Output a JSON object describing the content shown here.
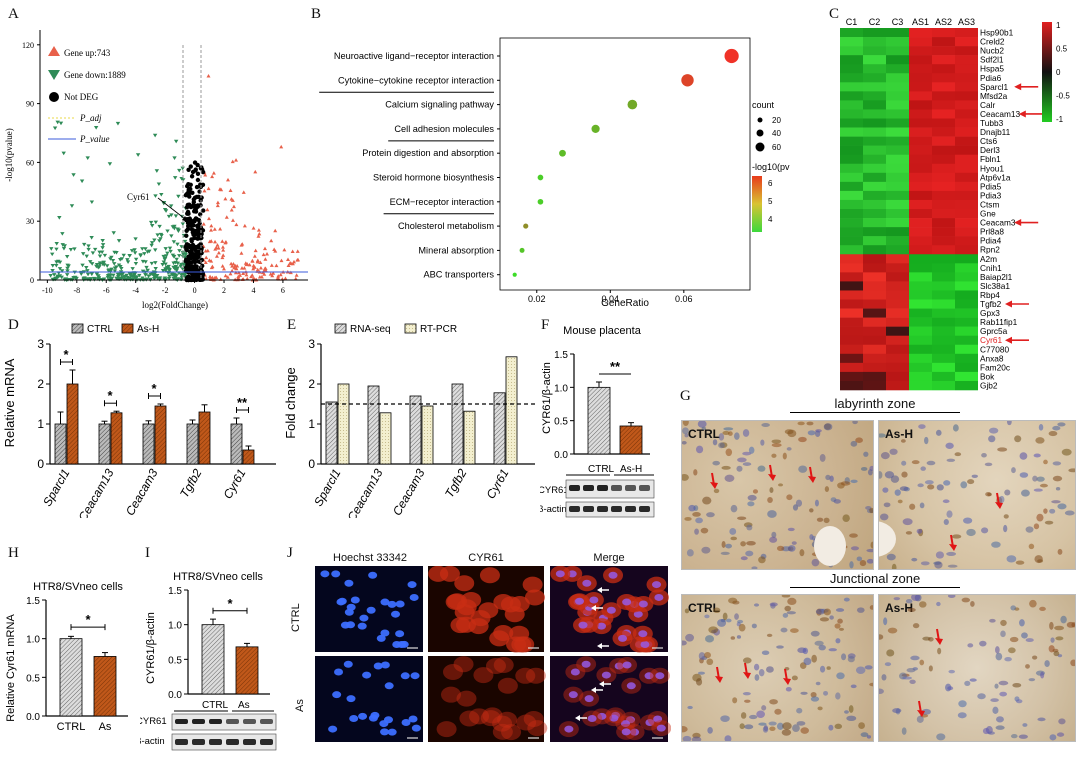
{
  "panels": {
    "A": "A",
    "B": "B",
    "C": "C",
    "D": "D",
    "E": "E",
    "F": "F",
    "G": "G",
    "H": "H",
    "I": "I",
    "J": "J"
  },
  "volcano": {
    "legend": [
      "Gene up:743",
      "Gene down:1889",
      "Not DEG",
      "P_adj",
      "P_value"
    ],
    "ylabel": "-log10(pvalue)",
    "xlabel": "log2(FoldChange)",
    "yticks": [
      "0",
      "30",
      "60",
      "90",
      "120"
    ],
    "xticks": [
      "-10",
      "-8",
      "-6",
      "-4",
      "-2",
      "0",
      "2",
      "4",
      "6"
    ],
    "annotation": "Cyr61",
    "colors": {
      "up": "#e8604a",
      "down": "#2e8b57",
      "notdeg": "#000000",
      "padj": "#e8d84a",
      "pvalue": "#3b5bdb"
    }
  },
  "bubble": {
    "terms": [
      "Neuroactive ligand−receptor interaction",
      "Cytokine−cytokine receptor interaction",
      "Calcium signaling pathway",
      "Cell adhesion molecules",
      "Protein digestion and absorption",
      "Steroid hormone biosynthesis",
      "ECM−receptor interaction",
      "Cholesterol metabolism",
      "Mineral absorption",
      "ABC transporters"
    ],
    "xlabel": "GeneRatio",
    "xticks": [
      "0.02",
      "0.04",
      "0.06"
    ],
    "legend_count_title": "count",
    "legend_counts": [
      "20",
      "40",
      "60"
    ],
    "legend_color_title": "-log10(pv",
    "legend_color_ticks": [
      "6",
      "5",
      "4"
    ]
  },
  "heatmap": {
    "columns": [
      "C1",
      "C2",
      "C3",
      "AS1",
      "AS2",
      "AS3"
    ],
    "genes": [
      "Hsp90b1",
      "Creld2",
      "Nucb2",
      "Sdf2l1",
      "Hspa5",
      "Pdia6",
      "Sparcl1",
      "Mfsd2a",
      "Calr",
      "Ceacam13",
      "Tubb3",
      "Dnajb11",
      "Cts6",
      "Derl3",
      "Fbln1",
      "Hyou1",
      "Atp6v1a",
      "Pdia5",
      "Pdia3",
      "Ctsm",
      "Gne",
      "Ceacam3",
      "Prl8a8",
      "Pdia4",
      "Rpn2",
      "A2m",
      "Cnih1",
      "Baiap2l1",
      "Slc38a1",
      "Rbp4",
      "Tgfb2",
      "Gpx3",
      "Rab11fip1",
      "Gprc5a",
      "Cyr61",
      "C77080",
      "Anxa8",
      "Fam20c",
      "Bok",
      "Gjb2"
    ],
    "arrowed": [
      "Sparcl1",
      "Ceacam13",
      "Ceacam3",
      "Tgfb2",
      "Cyr61"
    ],
    "scale_ticks": [
      "1",
      "0.5",
      "0",
      "-0.5",
      "-1"
    ]
  },
  "chartD": {
    "ylabel": "Relative mRNA",
    "legend": [
      "CTRL",
      "As-H"
    ],
    "categories": [
      "Sparcl1",
      "Ceacam13",
      "Ceacam3",
      "Tgfb2",
      "Cyr61"
    ],
    "yticks": [
      "0",
      "1",
      "2",
      "3"
    ],
    "sig": [
      "*",
      "*",
      "*",
      "",
      "**"
    ]
  },
  "chartE": {
    "ylabel": "Fold change",
    "legend": [
      "RNA-seq",
      "RT-PCR"
    ],
    "categories": [
      "Sparcl1",
      "Ceacam13",
      "Ceacam3",
      "Tgfb2",
      "Cyr61"
    ],
    "yticks": [
      "0",
      "1",
      "2",
      "3"
    ]
  },
  "chartF": {
    "title": "Mouse placenta",
    "ylabel": "CYR61/β-actin",
    "yticks": [
      "0.0",
      "0.5",
      "1.0",
      "1.5"
    ],
    "sig": "**",
    "groups": [
      "CTRL",
      "As-H"
    ],
    "blots": [
      "CYR61",
      "β-actin"
    ]
  },
  "panelG": {
    "zone1": "labyrinth zone",
    "zone2": "Junctional zone",
    "labels": [
      "CTRL",
      "As-H",
      "CTRL",
      "As-H"
    ]
  },
  "chartH": {
    "title": "HTR8/SVneo cells",
    "ylabel": "Relative Cyr61 mRNA",
    "yticks": [
      "0.0",
      "0.5",
      "1.0",
      "1.5"
    ],
    "categories": [
      "CTRL",
      "As"
    ],
    "sig": "*"
  },
  "chartI": {
    "title": "HTR8/SVneo cells",
    "ylabel": "CYR61/β-actin",
    "yticks": [
      "0.0",
      "0.5",
      "1.0",
      "1.5"
    ],
    "groups": [
      "CTRL",
      "As"
    ],
    "sig": "*",
    "blots": [
      "CYR61",
      "β-actin"
    ]
  },
  "panelJ": {
    "columns": [
      "Hoechst 33342",
      "CYR61",
      "Merge"
    ],
    "rows": [
      "CTRL",
      "As"
    ]
  },
  "chart_data": [
    {
      "type": "bar",
      "title": "",
      "ylabel": "Relative mRNA",
      "categories": [
        "Sparcl1",
        "Ceacam13",
        "Ceacam3",
        "Tgfb2",
        "Cyr61"
      ],
      "series": [
        {
          "name": "CTRL",
          "values": [
            1.0,
            1.0,
            1.0,
            1.0,
            1.0
          ],
          "errors": [
            0.3,
            0.07,
            0.08,
            0.1,
            0.15
          ]
        },
        {
          "name": "As-H",
          "values": [
            2.0,
            1.28,
            1.45,
            1.3,
            0.35
          ],
          "errors": [
            0.35,
            0.04,
            0.05,
            0.18,
            0.1
          ]
        }
      ],
      "ylim": [
        0,
        3
      ]
    },
    {
      "type": "bar",
      "title": "",
      "ylabel": "Fold change",
      "categories": [
        "Sparcl1",
        "Ceacam13",
        "Ceacam3",
        "Tgfb2",
        "Cyr61"
      ],
      "series": [
        {
          "name": "RNA-seq",
          "values": [
            1.55,
            1.95,
            1.7,
            2.0,
            1.78
          ]
        },
        {
          "name": "RT-PCR",
          "values": [
            2.0,
            1.28,
            1.45,
            1.32,
            2.68
          ]
        }
      ],
      "reference_line": 1.5,
      "ylim": [
        0,
        3
      ]
    },
    {
      "type": "bar",
      "title": "Mouse placenta",
      "ylabel": "CYR61/β-actin",
      "categories": [
        "CTRL",
        "As-H"
      ],
      "values": [
        1.0,
        0.42
      ],
      "errors": [
        0.08,
        0.05
      ],
      "ylim": [
        0,
        1.5
      ]
    },
    {
      "type": "bar",
      "title": "HTR8/SVneo cells",
      "ylabel": "Relative Cyr61 mRNA",
      "categories": [
        "CTRL",
        "As"
      ],
      "values": [
        1.0,
        0.77
      ],
      "errors": [
        0.03,
        0.05
      ],
      "ylim": [
        0,
        1.5
      ]
    },
    {
      "type": "bar",
      "title": "HTR8/SVneo cells",
      "ylabel": "CYR61/β-actin",
      "categories": [
        "CTRL",
        "As"
      ],
      "values": [
        1.0,
        0.68
      ],
      "errors": [
        0.08,
        0.05
      ],
      "ylim": [
        0,
        1.5
      ]
    },
    {
      "type": "scatter",
      "title": "",
      "xlabel": "GeneRatio",
      "categories": [
        "Neuroactive ligand−receptor interaction",
        "Cytokine−cytokine receptor interaction",
        "Calcium signaling pathway",
        "Cell adhesion molecules",
        "Protein digestion and absorption",
        "Steroid hormone biosynthesis",
        "ECM−receptor interaction",
        "Cholesterol metabolism",
        "Mineral absorption",
        "ABC transporters"
      ],
      "x": [
        0.073,
        0.061,
        0.046,
        0.036,
        0.027,
        0.021,
        0.021,
        0.017,
        0.016,
        0.014
      ],
      "count": [
        65,
        55,
        40,
        32,
        24,
        18,
        18,
        15,
        14,
        10
      ],
      "neg_log10_pvalue": [
        7.2,
        6.8,
        4.6,
        4.4,
        4.2,
        3.8,
        3.8,
        5.2,
        4.0,
        3.5
      ],
      "xlim": [
        0.01,
        0.078
      ]
    }
  ]
}
